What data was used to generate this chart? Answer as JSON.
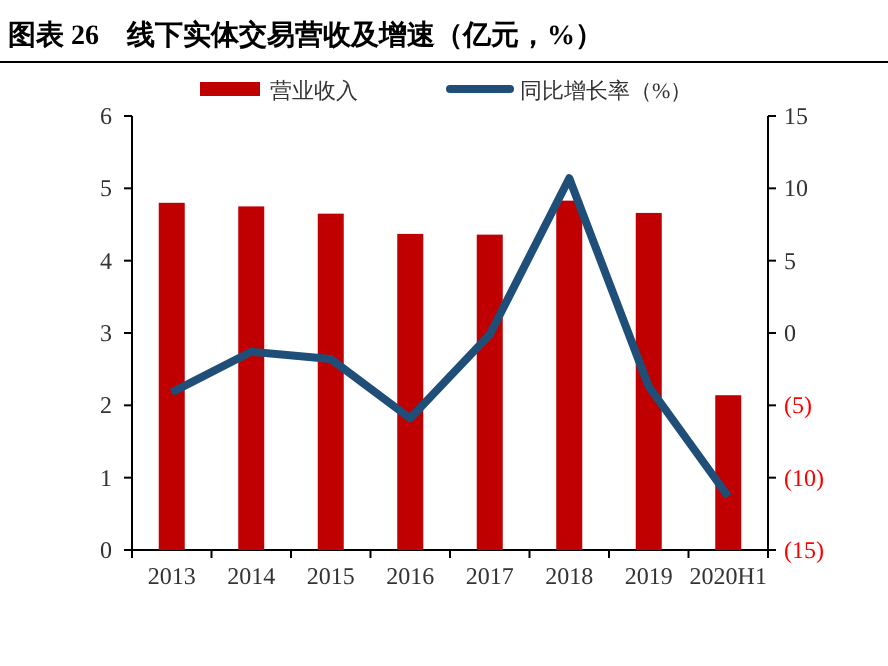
{
  "chart_data": {
    "type": "bar",
    "title": "图表 26　线下实体交易营收及增速（亿元，%）",
    "categories": [
      "2013",
      "2014",
      "2015",
      "2016",
      "2017",
      "2018",
      "2019",
      "2020H1"
    ],
    "series": [
      {
        "name": "营业收入",
        "color": "#c00000",
        "values": [
          4.8,
          4.75,
          4.65,
          4.37,
          4.36,
          4.83,
          4.66,
          2.14
        ]
      },
      {
        "name": "同比增长率（%）",
        "type": "line",
        "axis": "y2",
        "color": "#1f4e79",
        "values": [
          -4.1,
          -1.3,
          -1.8,
          -5.9,
          -0.1,
          10.7,
          -3.7,
          -11.3
        ]
      }
    ],
    "ylim": [
      0,
      6
    ],
    "yticks": [
      0,
      1,
      2,
      3,
      4,
      5,
      6
    ],
    "y2lim": [
      -15,
      15
    ],
    "y2ticks": [
      {
        "value": -15,
        "label": "(15)"
      },
      {
        "value": -10,
        "label": "(10)"
      },
      {
        "value": -5,
        "label": "(5)"
      },
      0,
      5,
      10,
      15
    ],
    "legend": "top",
    "grid": false
  }
}
